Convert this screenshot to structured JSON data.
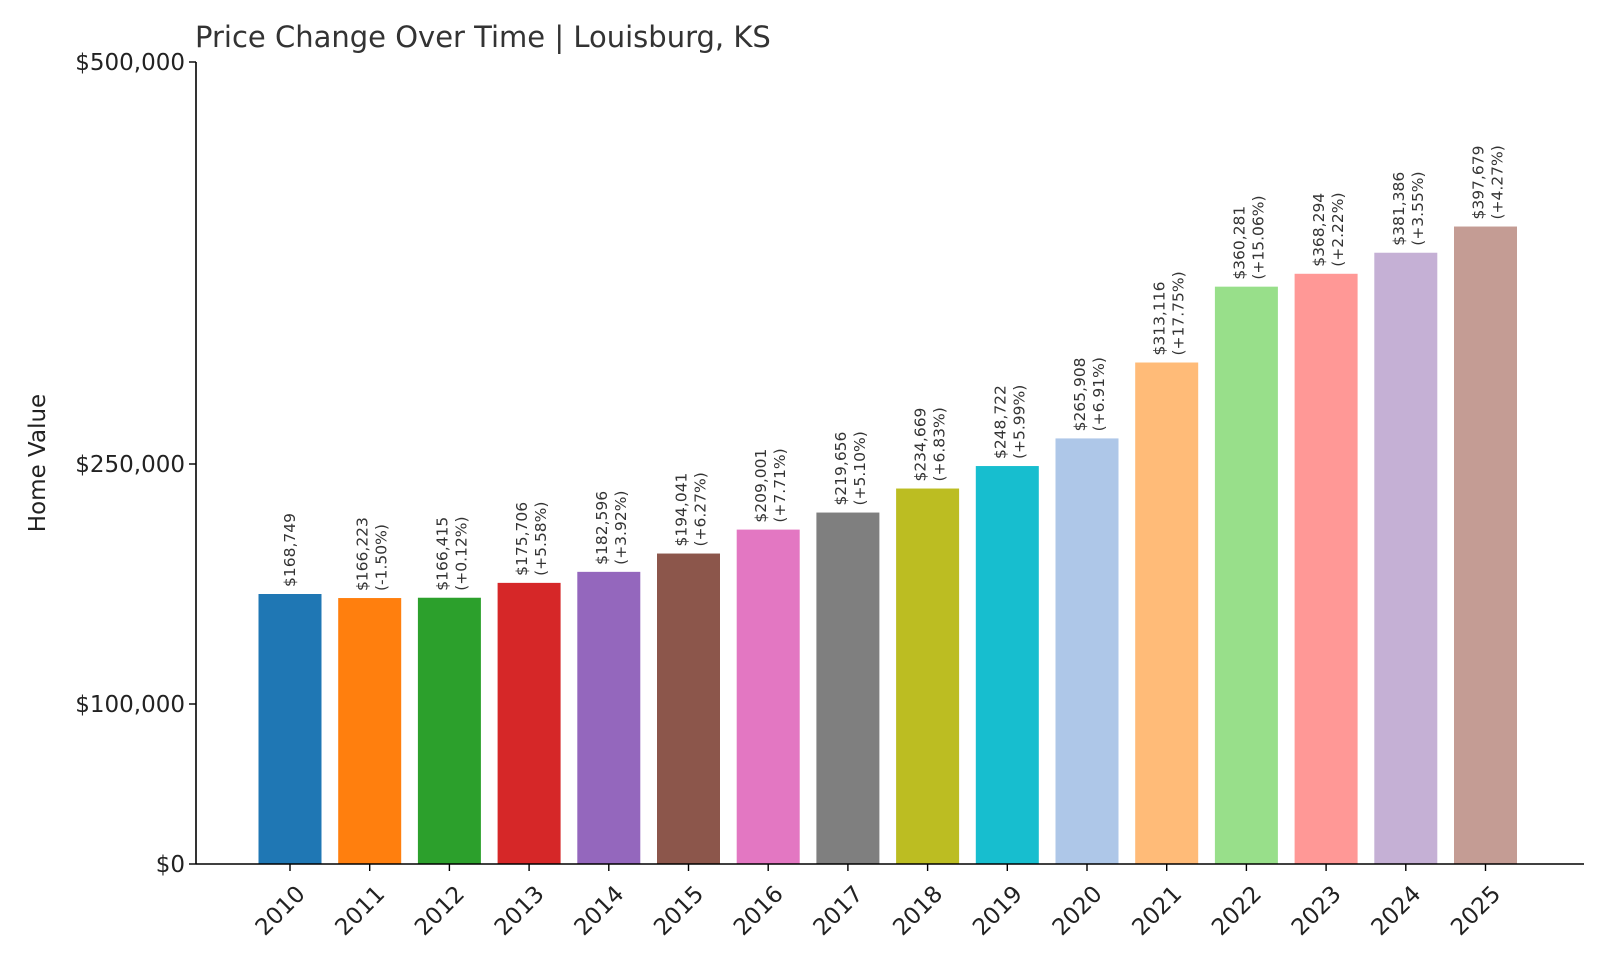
{
  "chart_data": {
    "type": "bar",
    "title": "Price Change Over Time | Louisburg, KS",
    "xlabel": "",
    "ylabel": "Home Value",
    "ylim": [
      0,
      500000
    ],
    "yticks": [
      {
        "value": 0,
        "label": "$0"
      },
      {
        "value": 100000,
        "label": "$100,000"
      },
      {
        "value": 250000,
        "label": "$250,000"
      },
      {
        "value": 500000,
        "label": "$500,000"
      }
    ],
    "categories": [
      "2010",
      "2011",
      "2012",
      "2013",
      "2014",
      "2015",
      "2016",
      "2017",
      "2018",
      "2019",
      "2020",
      "2021",
      "2022",
      "2023",
      "2024",
      "2025"
    ],
    "values": [
      168749,
      166223,
      166415,
      175706,
      182596,
      194041,
      209001,
      219656,
      234669,
      248722,
      265908,
      313116,
      360281,
      368294,
      381386,
      397679
    ],
    "value_labels": [
      "$168,749",
      "$166,223",
      "$166,415",
      "$175,706",
      "$182,596",
      "$194,041",
      "$209,001",
      "$219,656",
      "$234,669",
      "$248,722",
      "$265,908",
      "$313,116",
      "$360,281",
      "$368,294",
      "$381,386",
      "$397,679"
    ],
    "change_labels": [
      "",
      "(-1.50%)",
      "(+0.12%)",
      "(+5.58%)",
      "(+3.92%)",
      "(+6.27%)",
      "(+7.71%)",
      "(+5.10%)",
      "(+6.83%)",
      "(+5.99%)",
      "(+6.91%)",
      "(+17.75%)",
      "(+15.06%)",
      "(+2.22%)",
      "(+3.55%)",
      "(+4.27%)"
    ],
    "colors": [
      "#1f77b4",
      "#ff7f0e",
      "#2ca02c",
      "#d62728",
      "#9467bd",
      "#8c564b",
      "#e377c2",
      "#7f7f7f",
      "#bcbd22",
      "#17becf",
      "#aec7e8",
      "#ffbb78",
      "#98df8a",
      "#ff9896",
      "#c5b0d5",
      "#c49c94"
    ]
  }
}
